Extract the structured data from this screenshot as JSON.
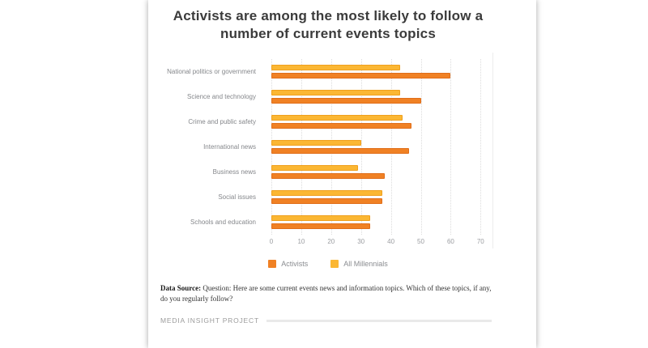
{
  "chart_data": {
    "type": "bar",
    "orientation": "horizontal",
    "title": "Activists are among the most likely to follow a number of current events topics",
    "categories": [
      "National politics or government",
      "Science and technology",
      "Crime and public safety",
      "International news",
      "Business news",
      "Social issues",
      "Schools and education"
    ],
    "series": [
      {
        "name": "All Millennials",
        "color": "#FBB733",
        "border_color": "#EFA01E",
        "values": [
          43,
          43,
          44,
          30,
          29,
          37,
          33
        ]
      },
      {
        "name": "Activists",
        "color": "#F08124",
        "border_color": "#E06E1A",
        "values": [
          60,
          50,
          47,
          46,
          38,
          37,
          33
        ]
      }
    ],
    "row_order_note": "All Millennials drawn as top bar of each pair, Activists below",
    "legend": [
      {
        "name": "Activists",
        "color": "#F08124"
      },
      {
        "name": "All Millennials",
        "color": "#FBB733"
      }
    ],
    "legend_position": "bottom-center",
    "xlim": [
      0,
      70
    ],
    "xticks": [
      0,
      10,
      20,
      30,
      40,
      50,
      60,
      70
    ],
    "grid": "dotted-vertical"
  },
  "footer": {
    "data_source_label": "Data Source:",
    "data_source_text": " Question: Here are some current events news and information topics. Which of these topics, if any, do you regularly follow?"
  },
  "brand": {
    "name": "MEDIA INSIGHT PROJECT"
  }
}
